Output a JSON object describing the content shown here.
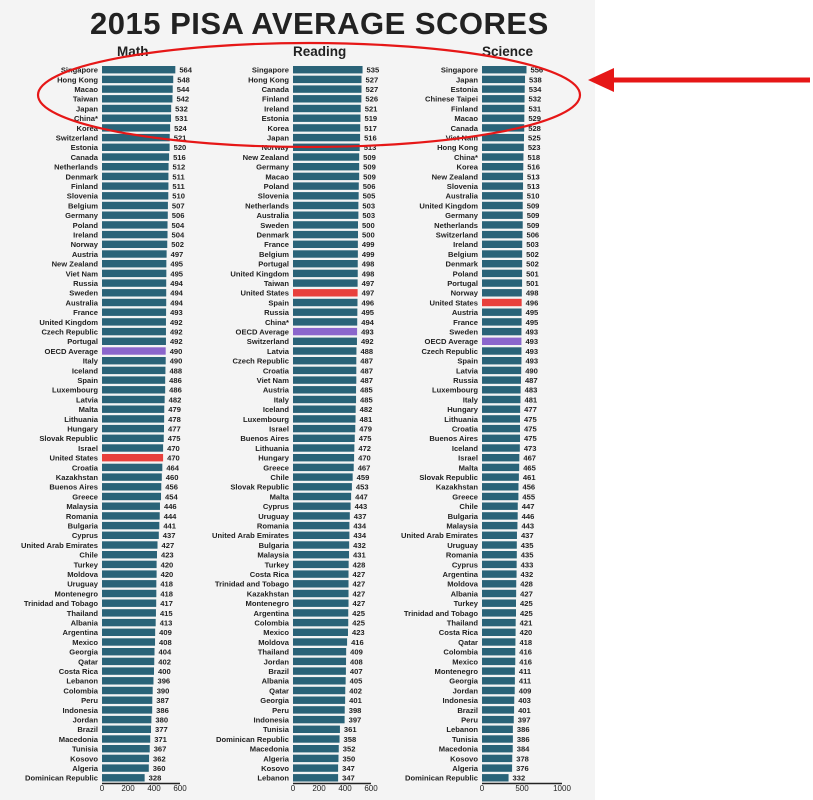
{
  "title": "2015 PISA AVERAGE SCORES",
  "colors": {
    "bar": "#2a6378",
    "us": "#e8403c",
    "oecd": "#8b66cc",
    "annotation": "#e61717",
    "background": "#f4f4f4"
  },
  "chart_data": [
    {
      "type": "bar",
      "orientation": "horizontal",
      "title": "Math",
      "xlim": [
        0,
        600
      ],
      "xticks": [
        "0",
        "200",
        "400",
        "600"
      ],
      "categories": [
        "Singapore",
        "Hong Kong",
        "Macao",
        "Taiwan",
        "Japan",
        "China*",
        "Korea",
        "Switzerland",
        "Estonia",
        "Canada",
        "Netherlands",
        "Denmark",
        "Finland",
        "Slovenia",
        "Belgium",
        "Germany",
        "Poland",
        "Ireland",
        "Norway",
        "Austria",
        "New Zealand",
        "Viet Nam",
        "Russia",
        "Sweden",
        "Australia",
        "France",
        "United Kingdom",
        "Czech Republic",
        "Portugal",
        "OECD Average",
        "Italy",
        "Iceland",
        "Spain",
        "Luxembourg",
        "Latvia",
        "Malta",
        "Lithuania",
        "Hungary",
        "Slovak Republic",
        "Israel",
        "United States",
        "Croatia",
        "Kazakhstan",
        "Buenos Aires",
        "Greece",
        "Malaysia",
        "Romania",
        "Bulgaria",
        "Cyprus",
        "United Arab Emirates",
        "Chile",
        "Turkey",
        "Moldova",
        "Uruguay",
        "Montenegro",
        "Trinidad and Tobago",
        "Thailand",
        "Albania",
        "Argentina",
        "Mexico",
        "Georgia",
        "Qatar",
        "Costa Rica",
        "Lebanon",
        "Colombia",
        "Peru",
        "Indonesia",
        "Jordan",
        "Brazil",
        "Macedonia",
        "Tunisia",
        "Kosovo",
        "Algeria",
        "Dominican Republic"
      ],
      "values": [
        564,
        548,
        544,
        542,
        532,
        531,
        524,
        521,
        520,
        516,
        512,
        511,
        511,
        510,
        507,
        506,
        504,
        504,
        502,
        497,
        495,
        495,
        494,
        494,
        494,
        493,
        492,
        492,
        492,
        490,
        490,
        488,
        486,
        486,
        482,
        479,
        478,
        477,
        475,
        470,
        470,
        464,
        460,
        456,
        454,
        446,
        444,
        441,
        437,
        427,
        423,
        420,
        420,
        418,
        418,
        417,
        415,
        413,
        409,
        408,
        404,
        402,
        400,
        396,
        390,
        387,
        386,
        380,
        377,
        371,
        367,
        362,
        360,
        328
      ],
      "highlights": {
        "United States": "us",
        "OECD Average": "oecd"
      }
    },
    {
      "type": "bar",
      "orientation": "horizontal",
      "title": "Reading",
      "xlim": [
        0,
        600
      ],
      "xticks": [
        "0",
        "200",
        "400",
        "600"
      ],
      "categories": [
        "Singapore",
        "Hong Kong",
        "Canada",
        "Finland",
        "Ireland",
        "Estonia",
        "Korea",
        "Japan",
        "Norway",
        "New Zealand",
        "Germany",
        "Macao",
        "Poland",
        "Slovenia",
        "Netherlands",
        "Australia",
        "Sweden",
        "Denmark",
        "France",
        "Belgium",
        "Portugal",
        "United Kingdom",
        "Taiwan",
        "United States",
        "Spain",
        "Russia",
        "China*",
        "OECD Average",
        "Switzerland",
        "Latvia",
        "Czech Republic",
        "Croatia",
        "Viet Nam",
        "Austria",
        "Italy",
        "Iceland",
        "Luxembourg",
        "Israel",
        "Buenos Aires",
        "Lithuania",
        "Hungary",
        "Greece",
        "Chile",
        "Slovak Republic",
        "Malta",
        "Cyprus",
        "Uruguay",
        "Romania",
        "United Arab Emirates",
        "Bulgaria",
        "Malaysia",
        "Turkey",
        "Costa Rica",
        "Trinidad and Tobago",
        "Kazakhstan",
        "Montenegro",
        "Argentina",
        "Colombia",
        "Mexico",
        "Moldova",
        "Thailand",
        "Jordan",
        "Brazil",
        "Albania",
        "Qatar",
        "Georgia",
        "Peru",
        "Indonesia",
        "Tunisia",
        "Dominican Republic",
        "Macedonia",
        "Algeria",
        "Kosovo",
        "Lebanon"
      ],
      "values": [
        535,
        527,
        527,
        526,
        521,
        519,
        517,
        516,
        513,
        509,
        509,
        509,
        506,
        505,
        503,
        503,
        500,
        500,
        499,
        499,
        498,
        498,
        497,
        497,
        496,
        495,
        494,
        493,
        492,
        488,
        487,
        487,
        487,
        485,
        485,
        482,
        481,
        479,
        475,
        472,
        470,
        467,
        459,
        453,
        447,
        443,
        437,
        434,
        434,
        432,
        431,
        428,
        427,
        427,
        427,
        427,
        425,
        425,
        423,
        416,
        409,
        408,
        407,
        405,
        402,
        401,
        398,
        397,
        361,
        358,
        352,
        350,
        347,
        347
      ],
      "highlights": {
        "United States": "us",
        "OECD Average": "oecd"
      }
    },
    {
      "type": "bar",
      "orientation": "horizontal",
      "title": "Science",
      "xlim": [
        0,
        1000
      ],
      "xticks": [
        "0",
        "500",
        "1000"
      ],
      "categories": [
        "Singapore",
        "Japan",
        "Estonia",
        "Chinese Taipei",
        "Finland",
        "Macao",
        "Canada",
        "Viet Nam",
        "Hong Kong",
        "China*",
        "Korea",
        "New Zealand",
        "Slovenia",
        "Australia",
        "United Kingdom",
        "Germany",
        "Netherlands",
        "Switzerland",
        "Ireland",
        "Belgium",
        "Denmark",
        "Poland",
        "Portugal",
        "Norway",
        "United States",
        "Austria",
        "France",
        "Sweden",
        "OECD Average",
        "Czech Republic",
        "Spain",
        "Latvia",
        "Russia",
        "Luxembourg",
        "Italy",
        "Hungary",
        "Lithuania",
        "Croatia",
        "Buenos Aires",
        "Iceland",
        "Israel",
        "Malta",
        "Slovak Republic",
        "Kazakhstan",
        "Greece",
        "Chile",
        "Bulgaria",
        "Malaysia",
        "United Arab Emirates",
        "Uruguay",
        "Romania",
        "Cyprus",
        "Argentina",
        "Moldova",
        "Albania",
        "Turkey",
        "Trinidad and Tobago",
        "Thailand",
        "Costa Rica",
        "Qatar",
        "Colombia",
        "Mexico",
        "Montenegro",
        "Georgia",
        "Jordan",
        "Indonesia",
        "Brazil",
        "Peru",
        "Lebanon",
        "Tunisia",
        "Macedonia",
        "Kosovo",
        "Algeria",
        "Dominican Republic"
      ],
      "values": [
        556,
        538,
        534,
        532,
        531,
        529,
        528,
        525,
        523,
        518,
        516,
        513,
        513,
        510,
        509,
        509,
        509,
        506,
        503,
        502,
        502,
        501,
        501,
        498,
        496,
        495,
        495,
        493,
        493,
        493,
        493,
        490,
        487,
        483,
        481,
        477,
        475,
        475,
        475,
        473,
        467,
        465,
        461,
        456,
        455,
        447,
        446,
        443,
        437,
        435,
        435,
        433,
        432,
        428,
        427,
        425,
        425,
        421,
        420,
        418,
        416,
        416,
        411,
        411,
        409,
        403,
        401,
        397,
        386,
        386,
        384,
        378,
        376,
        332
      ],
      "highlights": {
        "United States": "us",
        "OECD Average": "oecd"
      }
    }
  ]
}
